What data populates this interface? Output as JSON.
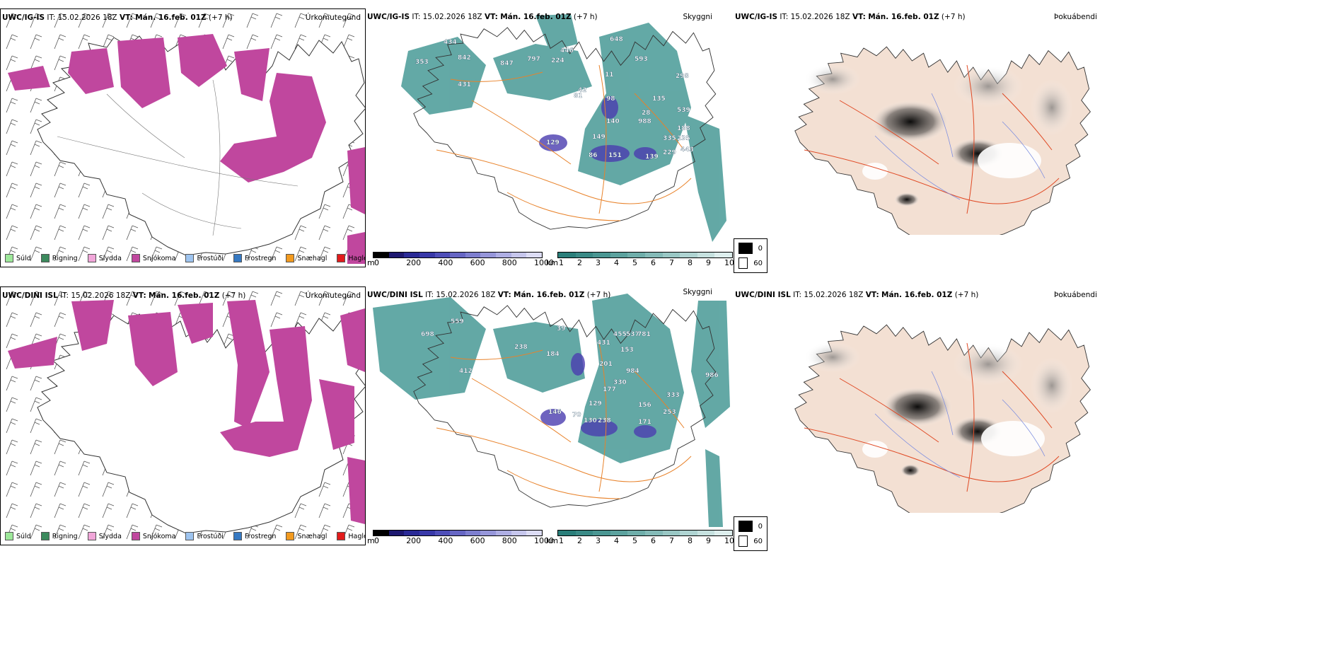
{
  "colors": {
    "snow": "#c0479e",
    "drizzle": "#9de89a",
    "rain": "#3c8a5d",
    "sleet": "#f1a6d9",
    "freezing_drizzle": "#9ec4ef",
    "freezing_rain": "#3679c2",
    "snow_pellets": "#f29a1f",
    "hail": "#e21b1b",
    "cloud_teal": "#2f8c88",
    "cloud_purple": "#4b3db0",
    "road_orange": "#e8822a",
    "land_fog": "#f3e0d3",
    "fog_dark": "#1a1a1a"
  },
  "rows": [
    {
      "model": "UWC/IG-IS",
      "it_label": "IT:",
      "it_value": "15.02.2026 18Z",
      "vt_label": "VT:",
      "vt_value": "Mán. 16.feb. 01Z",
      "lead": "(+7 h)",
      "cloud_labels": [
        "434",
        "353",
        "842",
        "847",
        "797",
        "224",
        "446",
        "648",
        "593",
        "431",
        "42",
        "98",
        "135",
        "298",
        "28",
        "539",
        "988",
        "188",
        "335",
        "140",
        "235",
        "149",
        "229",
        "443",
        "129",
        "86",
        "151",
        "139",
        "11",
        "81"
      ]
    },
    {
      "model": "UWC/DINI ISL",
      "it_label": "IT:",
      "it_value": "15.02.2026 18Z",
      "vt_label": "VT:",
      "vt_value": "Mán. 16.feb. 01Z",
      "lead": "(+7 h)",
      "cloud_labels": [
        "559",
        "698",
        "238",
        "39",
        "412",
        "184",
        "431",
        "455",
        "537",
        "781",
        "153",
        "201",
        "984",
        "330",
        "177",
        "986",
        "129",
        "156",
        "333",
        "253",
        "146",
        "130",
        "238",
        "171",
        "70"
      ]
    }
  ],
  "panel_titles": {
    "precip": "Úrkomutegund",
    "cloud": "Skyggni",
    "fog": "Þokuábendi"
  },
  "precip_legend": [
    {
      "label": "Súld",
      "color": "#9de89a"
    },
    {
      "label": "Rigning",
      "color": "#3c8a5d"
    },
    {
      "label": "Slydda",
      "color": "#f1a6d9"
    },
    {
      "label": "Snjókoma",
      "color": "#c0479e"
    },
    {
      "label": "Frostúði",
      "color": "#9ec4ef"
    },
    {
      "label": "Frostregn",
      "color": "#3679c2"
    },
    {
      "label": "Snæhagl",
      "color": "#f29a1f"
    },
    {
      "label": "Haglél",
      "color": "#e21b1b"
    }
  ],
  "cloudbase_scale": {
    "unit": "m",
    "ticks": [
      "0",
      "200",
      "400",
      "600",
      "800",
      "1000"
    ],
    "colors": [
      "#000000",
      "#1d1870",
      "#2a2a96",
      "#3838a8",
      "#4e4eb8",
      "#6666c4",
      "#7d7ecf",
      "#9696da",
      "#aeaee3",
      "#c6c6ec",
      "#dcdcf4"
    ]
  },
  "visibility_scale": {
    "unit": "km",
    "ticks": [
      "1",
      "2",
      "3",
      "4",
      "5",
      "6",
      "7",
      "8",
      "9",
      "10"
    ],
    "colors": [
      "#2a7e7a",
      "#3a8a86",
      "#4a9692",
      "#5ca29e",
      "#6faeaa",
      "#84bab7",
      "#99c7c4",
      "#afd4d2",
      "#c6e1df",
      "#ddeeed"
    ]
  },
  "fog_legend": [
    {
      "label": "0",
      "color": "#000000"
    },
    {
      "label": "60",
      "color": "#ffffff"
    }
  ]
}
